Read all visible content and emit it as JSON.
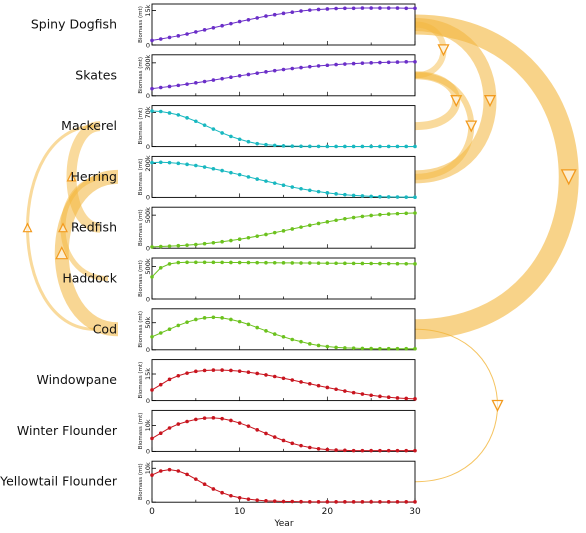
{
  "chart_data": {
    "type": "line",
    "xlabel": "Year",
    "xlim": [
      0,
      30
    ],
    "xticks": [
      0,
      10,
      20,
      30
    ],
    "ylabel_units": "Biomass (mt)",
    "colors": {
      "arc": "#f3b53a",
      "arrow": "#f29a1e",
      "axis": "#000000"
    },
    "series": [
      {
        "name": "Spiny Dogfish",
        "ytick_label": "15k",
        "ytick_value": 15,
        "ymax": 17,
        "color": "#6a2ec8",
        "values": [
          2.0,
          2.6,
          3.3,
          4.0,
          4.8,
          5.7,
          6.6,
          7.5,
          8.4,
          9.3,
          10.2,
          11.0,
          11.8,
          12.6,
          13.2,
          13.8,
          14.3,
          14.8,
          15.2,
          15.5,
          15.7,
          15.9,
          16.0,
          16.0,
          16.1,
          16.1,
          16.1,
          16.1,
          16.1,
          16.0,
          16.0
        ]
      },
      {
        "name": "Skates",
        "ytick_label": "300k",
        "ytick_value": 300,
        "ymax": 355,
        "color": "#6a2ec8",
        "values": [
          65,
          75,
          85,
          95,
          106,
          118,
          130,
          143,
          156,
          169,
          182,
          194,
          206,
          218,
          229,
          239,
          248,
          257,
          265,
          272,
          278,
          284,
          289,
          293,
          297,
          300,
          303,
          305,
          307,
          309,
          310
        ]
      },
      {
        "name": "Mackerel",
        "ytick_label": "70k",
        "ytick_value": 70,
        "ymax": 80,
        "color": "#18b8c0",
        "values": [
          73,
          72,
          69,
          65,
          59,
          52,
          44,
          36,
          28,
          21,
          15,
          10,
          6,
          4,
          2.5,
          1.5,
          1,
          0.7,
          0.5,
          0.4,
          0.3,
          0.3,
          0.3,
          0.3,
          0.3,
          0.3,
          0.3,
          0.3,
          0.3,
          0.3,
          0.3
        ]
      },
      {
        "name": "Herring",
        "ytick_label": "200k",
        "ytick_value": 200,
        "ymax": 230,
        "color": "#18b8c0",
        "values": [
          205,
          207,
          205,
          201,
          195,
          188,
          179,
          169,
          158,
          146,
          134,
          121,
          108,
          96,
          84,
          72,
          61,
          51,
          42,
          34,
          27,
          21,
          16,
          12,
          9,
          6,
          4,
          3,
          2,
          1.5,
          1
        ]
      },
      {
        "name": "Redfish",
        "ytick_label": "500k",
        "ytick_value": 500,
        "ymax": 590,
        "color": "#6cc21e",
        "values": [
          20,
          25,
          31,
          38,
          46,
          56,
          68,
          82,
          98,
          116,
          136,
          158,
          182,
          208,
          235,
          263,
          291,
          319,
          347,
          374,
          399,
          423,
          445,
          464,
          481,
          495,
          507,
          516,
          523,
          528,
          532
        ]
      },
      {
        "name": "Haddock",
        "ytick_label": "500k",
        "ytick_value": 500,
        "ymax": 600,
        "color": "#6cc21e",
        "values": [
          340,
          480,
          540,
          560,
          565,
          565,
          565,
          564,
          563,
          562,
          561,
          560,
          559,
          558,
          557,
          556,
          555,
          554,
          553,
          552,
          551,
          550,
          549,
          548,
          547,
          546,
          545,
          544,
          543,
          542,
          541
        ]
      },
      {
        "name": "Cod",
        "ytick_label": "50k",
        "ytick_value": 50,
        "ymax": 72,
        "color": "#6cc21e",
        "values": [
          24,
          31,
          38,
          45,
          51,
          56,
          59,
          60,
          59,
          56,
          52,
          47,
          41,
          35,
          29,
          24,
          19,
          15,
          11,
          8,
          6,
          4.5,
          3.5,
          3,
          2.5,
          2.2,
          2,
          2,
          2,
          2,
          2
        ]
      },
      {
        "name": "Windowpane",
        "ytick_label": "15k",
        "ytick_value": 15,
        "ymax": 22,
        "color": "#c8141e",
        "values": [
          6,
          9,
          12,
          14,
          15.5,
          16.5,
          17,
          17.2,
          17.2,
          17,
          16.6,
          16,
          15.3,
          14.5,
          13.6,
          12.6,
          11.6,
          10.5,
          9.5,
          8.4,
          7.4,
          6.4,
          5.4,
          4.5,
          3.7,
          3,
          2.4,
          1.9,
          1.5,
          1.2,
          1
        ]
      },
      {
        "name": "Winter Flounder",
        "ytick_label": "10k",
        "ytick_value": 10,
        "ymax": 15,
        "color": "#c8141e",
        "values": [
          5,
          7,
          9,
          10.5,
          11.5,
          12.3,
          12.8,
          12.9,
          12.6,
          11.9,
          10.9,
          9.7,
          8.3,
          6.9,
          5.5,
          4.2,
          3.1,
          2.2,
          1.5,
          1,
          0.7,
          0.5,
          0.4,
          0.3,
          0.3,
          0.3,
          0.3,
          0.3,
          0.3,
          0.3,
          0.3
        ]
      },
      {
        "name": "Yellowtail Flounder",
        "ytick_label": "10k",
        "ytick_value": 10,
        "ymax": 11.5,
        "color": "#c8141e",
        "values": [
          8,
          9.2,
          9.6,
          9.2,
          8.2,
          6.8,
          5.3,
          3.9,
          2.8,
          1.9,
          1.3,
          0.9,
          0.6,
          0.4,
          0.3,
          0.2,
          0.2,
          0.15,
          0.1,
          0.1,
          0.1,
          0.1,
          0.1,
          0.1,
          0.1,
          0.1,
          0.1,
          0.1,
          0.1,
          0.1,
          0.1
        ]
      }
    ]
  }
}
